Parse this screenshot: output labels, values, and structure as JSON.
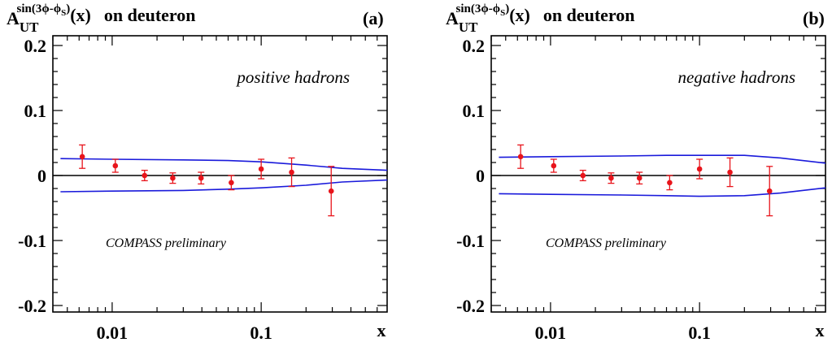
{
  "chart_data": [
    {
      "type": "scatter",
      "panel_label": "(a)",
      "title": {
        "main": "A",
        "subscript": "UT",
        "superscript": "sin(3ϕ-ϕ",
        "superscript_sub": "S",
        "superscript_end": ")",
        "arg": "(x)",
        "suffix": "on deuteron"
      },
      "annotation": "positive hadrons",
      "preliminary": "COMPASS preliminary",
      "xlabel": "x",
      "xscale": "log",
      "xlim": [
        0.004,
        0.7
      ],
      "ylim": [
        -0.21,
        0.215
      ],
      "x_tick_labels": [
        {
          "value": 0.01,
          "label": "0.01"
        },
        {
          "value": 0.1,
          "label": "0.1"
        }
      ],
      "y_tick_labels": [
        {
          "value": 0.2,
          "label": "0.2"
        },
        {
          "value": 0.1,
          "label": "0.1"
        },
        {
          "value": 0,
          "label": "0"
        },
        {
          "value": -0.1,
          "label": "-0.1"
        },
        {
          "value": -0.2,
          "label": "-0.2"
        }
      ],
      "points": [
        {
          "x": 0.0063,
          "y": 0.029,
          "err": 0.018
        },
        {
          "x": 0.0105,
          "y": 0.015,
          "err": 0.01
        },
        {
          "x": 0.0165,
          "y": 0.0,
          "err": 0.008
        },
        {
          "x": 0.0255,
          "y": -0.004,
          "err": 0.008
        },
        {
          "x": 0.0395,
          "y": -0.004,
          "err": 0.009
        },
        {
          "x": 0.063,
          "y": -0.011,
          "err": 0.011
        },
        {
          "x": 0.1,
          "y": 0.01,
          "err": 0.015
        },
        {
          "x": 0.16,
          "y": 0.005,
          "err": 0.022
        },
        {
          "x": 0.295,
          "y": -0.024,
          "err": 0.038
        }
      ],
      "band_upper": [
        {
          "x": 0.0045,
          "y": 0.026
        },
        {
          "x": 0.01,
          "y": 0.025
        },
        {
          "x": 0.03,
          "y": 0.024
        },
        {
          "x": 0.06,
          "y": 0.023
        },
        {
          "x": 0.1,
          "y": 0.021
        },
        {
          "x": 0.2,
          "y": 0.016
        },
        {
          "x": 0.35,
          "y": 0.011
        },
        {
          "x": 0.7,
          "y": 0.008
        }
      ],
      "band_lower": [
        {
          "x": 0.0045,
          "y": -0.025
        },
        {
          "x": 0.01,
          "y": -0.024
        },
        {
          "x": 0.03,
          "y": -0.023
        },
        {
          "x": 0.06,
          "y": -0.021
        },
        {
          "x": 0.1,
          "y": -0.019
        },
        {
          "x": 0.2,
          "y": -0.015
        },
        {
          "x": 0.35,
          "y": -0.01
        },
        {
          "x": 0.7,
          "y": -0.007
        }
      ],
      "colors": {
        "points": "#e8141b",
        "band": "#1a1adb",
        "axes": "#000000"
      }
    },
    {
      "type": "scatter",
      "panel_label": "(b)",
      "title": {
        "main": "A",
        "subscript": "UT",
        "superscript": "sin(3ϕ-ϕ",
        "superscript_sub": "S",
        "superscript_end": ")",
        "arg": "(x)",
        "suffix": "on deuteron"
      },
      "annotation": "negative hadrons",
      "preliminary": "COMPASS preliminary",
      "xlabel": "x",
      "xscale": "log",
      "xlim": [
        0.004,
        0.7
      ],
      "ylim": [
        -0.21,
        0.215
      ],
      "x_tick_labels": [
        {
          "value": 0.01,
          "label": "0.01"
        },
        {
          "value": 0.1,
          "label": "0.1"
        }
      ],
      "y_tick_labels": [
        {
          "value": 0.2,
          "label": "0.2"
        },
        {
          "value": 0.1,
          "label": "0.1"
        },
        {
          "value": 0,
          "label": "0"
        },
        {
          "value": -0.1,
          "label": "-0.1"
        },
        {
          "value": -0.2,
          "label": "-0.2"
        }
      ],
      "points": [
        {
          "x": 0.0063,
          "y": 0.029,
          "err": 0.018
        },
        {
          "x": 0.0105,
          "y": 0.015,
          "err": 0.01
        },
        {
          "x": 0.0165,
          "y": 0.0,
          "err": 0.008
        },
        {
          "x": 0.0255,
          "y": -0.004,
          "err": 0.008
        },
        {
          "x": 0.0395,
          "y": -0.004,
          "err": 0.009
        },
        {
          "x": 0.063,
          "y": -0.011,
          "err": 0.011
        },
        {
          "x": 0.1,
          "y": 0.01,
          "err": 0.015
        },
        {
          "x": 0.16,
          "y": 0.005,
          "err": 0.022
        },
        {
          "x": 0.295,
          "y": -0.024,
          "err": 0.038
        }
      ],
      "band_upper": [
        {
          "x": 0.0045,
          "y": 0.028
        },
        {
          "x": 0.01,
          "y": 0.029
        },
        {
          "x": 0.03,
          "y": 0.03
        },
        {
          "x": 0.06,
          "y": 0.031
        },
        {
          "x": 0.1,
          "y": 0.031
        },
        {
          "x": 0.2,
          "y": 0.031
        },
        {
          "x": 0.35,
          "y": 0.027
        },
        {
          "x": 0.7,
          "y": 0.019
        }
      ],
      "band_lower": [
        {
          "x": 0.0045,
          "y": -0.028
        },
        {
          "x": 0.01,
          "y": -0.029
        },
        {
          "x": 0.03,
          "y": -0.03
        },
        {
          "x": 0.06,
          "y": -0.031
        },
        {
          "x": 0.1,
          "y": -0.032
        },
        {
          "x": 0.2,
          "y": -0.031
        },
        {
          "x": 0.35,
          "y": -0.027
        },
        {
          "x": 0.7,
          "y": -0.019
        }
      ],
      "colors": {
        "points": "#e8141b",
        "band": "#1a1adb",
        "axes": "#000000"
      }
    }
  ]
}
